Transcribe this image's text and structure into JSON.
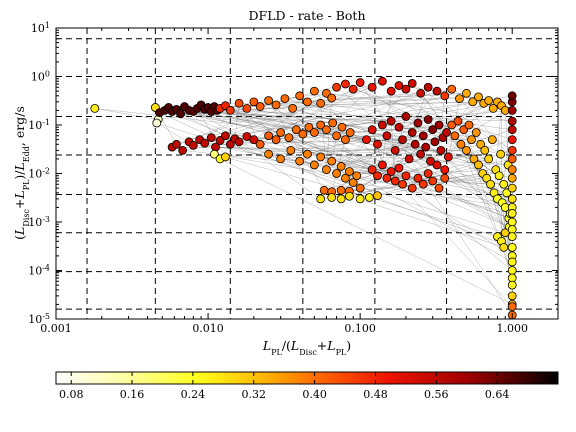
{
  "chart_data": {
    "type": "scatter",
    "title": "DFLD - rate - Both",
    "xlabel": "L_PL/(L_Disc+L_PL)",
    "ylabel": "(L_Disc+L_PL)/L_Edd, erg/s",
    "x_scale": "log",
    "y_scale": "log",
    "xlim": [
      0.001,
      2.0
    ],
    "ylim": [
      1e-05,
      10
    ],
    "grid": false,
    "x_ticks": [
      {
        "value": 0.001,
        "label": "0.001"
      },
      {
        "value": 0.01,
        "label": "0.010"
      },
      {
        "value": 0.1,
        "label": "0.100"
      },
      {
        "value": 1.0,
        "label": "1.000"
      }
    ],
    "y_ticks": [
      {
        "value": 1e-05,
        "base": "10",
        "exp": "-5"
      },
      {
        "value": 0.0001,
        "base": "10",
        "exp": "-4"
      },
      {
        "value": 0.001,
        "base": "10",
        "exp": "-3"
      },
      {
        "value": 0.01,
        "base": "10",
        "exp": "-2"
      },
      {
        "value": 0.1,
        "base": "10",
        "exp": "-1"
      },
      {
        "value": 1.0,
        "base": "10",
        "exp": "0"
      },
      {
        "value": 10,
        "base": "10",
        "exp": "1"
      }
    ],
    "dashed_vlines": [
      0.0016,
      0.0045,
      0.014,
      0.042,
      0.125,
      0.37
    ],
    "dashed_hlines": [
      6.0,
      1.0,
      0.15,
      0.024,
      0.0037,
      0.0006,
      9.5e-05,
      1.6e-05
    ],
    "colorbar": {
      "orientation": "horizontal",
      "colormap": "hot_r",
      "range": [
        0.06,
        0.72
      ],
      "tick_labels": [
        "0.08",
        "0.16",
        "0.24",
        "0.32",
        "0.40",
        "0.48",
        "0.56",
        "0.64"
      ],
      "tick_values": [
        0.08,
        0.16,
        0.24,
        0.32,
        0.4,
        0.48,
        0.56,
        0.64
      ]
    },
    "series": [
      {
        "points": [
          [
            0.0018,
            0.22,
            0.26
          ],
          [
            0.0045,
            0.23,
            0.28
          ],
          [
            0.0047,
            0.13,
            0.12
          ],
          [
            0.0046,
            0.11,
            0.1
          ],
          [
            0.0048,
            0.18,
            0.66
          ],
          [
            0.0052,
            0.2,
            0.66
          ],
          [
            0.0055,
            0.23,
            0.66
          ],
          [
            0.0058,
            0.19,
            0.66
          ],
          [
            0.0062,
            0.21,
            0.66
          ],
          [
            0.0066,
            0.17,
            0.66
          ],
          [
            0.007,
            0.24,
            0.66
          ],
          [
            0.0075,
            0.2,
            0.66
          ],
          [
            0.008,
            0.19,
            0.66
          ],
          [
            0.0085,
            0.22,
            0.66
          ],
          [
            0.009,
            0.26,
            0.66
          ],
          [
            0.0095,
            0.21,
            0.66
          ],
          [
            0.01,
            0.23,
            0.66
          ],
          [
            0.0105,
            0.19,
            0.66
          ],
          [
            0.011,
            0.24,
            0.66
          ],
          [
            0.0115,
            0.2,
            0.66
          ],
          [
            0.012,
            0.22,
            0.48
          ],
          [
            0.013,
            0.25,
            0.48
          ],
          [
            0.014,
            0.2,
            0.46
          ],
          [
            0.016,
            0.28,
            0.44
          ],
          [
            0.018,
            0.22,
            0.44
          ],
          [
            0.02,
            0.3,
            0.42
          ],
          [
            0.022,
            0.24,
            0.42
          ],
          [
            0.025,
            0.32,
            0.4
          ],
          [
            0.028,
            0.26,
            0.4
          ],
          [
            0.032,
            0.35,
            0.4
          ],
          [
            0.036,
            0.22,
            0.4
          ],
          [
            0.04,
            0.4,
            0.4
          ],
          [
            0.045,
            0.3,
            0.4
          ],
          [
            0.05,
            0.5,
            0.4
          ],
          [
            0.055,
            0.28,
            0.4
          ],
          [
            0.06,
            0.45,
            0.4
          ],
          [
            0.065,
            0.36,
            0.4
          ],
          [
            0.07,
            0.6,
            0.46
          ],
          [
            0.08,
            0.7,
            0.48
          ],
          [
            0.09,
            0.55,
            0.48
          ],
          [
            0.1,
            0.75,
            0.5
          ],
          [
            0.12,
            0.6,
            0.5
          ],
          [
            0.14,
            0.8,
            0.52
          ],
          [
            0.16,
            0.5,
            0.52
          ],
          [
            0.18,
            0.65,
            0.52
          ],
          [
            0.2,
            0.55,
            0.54
          ],
          [
            0.22,
            0.72,
            0.54
          ],
          [
            0.25,
            0.45,
            0.54
          ],
          [
            0.28,
            0.6,
            0.56
          ],
          [
            0.32,
            0.5,
            0.56
          ],
          [
            0.36,
            0.4,
            0.46
          ],
          [
            0.4,
            0.55,
            0.4
          ],
          [
            0.45,
            0.35,
            0.36
          ],
          [
            0.5,
            0.45,
            0.34
          ],
          [
            0.55,
            0.3,
            0.34
          ],
          [
            0.6,
            0.38,
            0.34
          ],
          [
            0.65,
            0.28,
            0.34
          ],
          [
            0.7,
            0.32,
            0.34
          ],
          [
            0.75,
            0.22,
            0.34
          ],
          [
            0.8,
            0.3,
            0.34
          ],
          [
            0.85,
            0.25,
            0.34
          ],
          [
            0.9,
            0.2,
            0.34
          ],
          [
            0.0058,
            0.035,
            0.56
          ],
          [
            0.0062,
            0.04,
            0.56
          ],
          [
            0.0068,
            0.03,
            0.56
          ],
          [
            0.0075,
            0.045,
            0.56
          ],
          [
            0.008,
            0.038,
            0.56
          ],
          [
            0.0088,
            0.05,
            0.56
          ],
          [
            0.0095,
            0.042,
            0.56
          ],
          [
            0.0105,
            0.055,
            0.56
          ],
          [
            0.0112,
            0.035,
            0.56
          ],
          [
            0.012,
            0.048,
            0.56
          ],
          [
            0.013,
            0.06,
            0.56
          ],
          [
            0.014,
            0.04,
            0.56
          ],
          [
            0.015,
            0.052,
            0.56
          ],
          [
            0.016,
            0.045,
            0.56
          ],
          [
            0.018,
            0.058,
            0.54
          ],
          [
            0.02,
            0.05,
            0.54
          ],
          [
            0.011,
            0.025,
            0.18
          ],
          [
            0.012,
            0.02,
            0.24
          ],
          [
            0.013,
            0.022,
            0.3
          ],
          [
            0.022,
            0.04,
            0.42
          ],
          [
            0.025,
            0.06,
            0.42
          ],
          [
            0.028,
            0.05,
            0.42
          ],
          [
            0.03,
            0.07,
            0.4
          ],
          [
            0.034,
            0.055,
            0.4
          ],
          [
            0.038,
            0.08,
            0.4
          ],
          [
            0.042,
            0.065,
            0.4
          ],
          [
            0.046,
            0.09,
            0.4
          ],
          [
            0.05,
            0.07,
            0.4
          ],
          [
            0.055,
            0.1,
            0.4
          ],
          [
            0.06,
            0.08,
            0.4
          ],
          [
            0.066,
            0.11,
            0.4
          ],
          [
            0.07,
            0.06,
            0.4
          ],
          [
            0.076,
            0.09,
            0.4
          ],
          [
            0.08,
            0.05,
            0.4
          ],
          [
            0.086,
            0.07,
            0.4
          ],
          [
            0.025,
            0.025,
            0.38
          ],
          [
            0.03,
            0.02,
            0.38
          ],
          [
            0.035,
            0.03,
            0.38
          ],
          [
            0.04,
            0.018,
            0.38
          ],
          [
            0.045,
            0.025,
            0.38
          ],
          [
            0.05,
            0.015,
            0.38
          ],
          [
            0.055,
            0.022,
            0.38
          ],
          [
            0.06,
            0.012,
            0.38
          ],
          [
            0.065,
            0.018,
            0.38
          ],
          [
            0.07,
            0.01,
            0.38
          ],
          [
            0.075,
            0.014,
            0.38
          ],
          [
            0.08,
            0.008,
            0.38
          ],
          [
            0.085,
            0.011,
            0.38
          ],
          [
            0.09,
            0.0065,
            0.38
          ],
          [
            0.095,
            0.009,
            0.38
          ],
          [
            0.1,
            0.005,
            0.4
          ],
          [
            0.058,
            0.0045,
            0.4
          ],
          [
            0.065,
            0.0042,
            0.4
          ],
          [
            0.075,
            0.0045,
            0.4
          ],
          [
            0.085,
            0.0043,
            0.4
          ],
          [
            0.055,
            0.003,
            0.28
          ],
          [
            0.065,
            0.0032,
            0.28
          ],
          [
            0.075,
            0.003,
            0.28
          ],
          [
            0.085,
            0.0034,
            0.28
          ],
          [
            0.1,
            0.003,
            0.26
          ],
          [
            0.115,
            0.0032,
            0.26
          ],
          [
            0.13,
            0.0035,
            0.32
          ],
          [
            0.11,
            0.05,
            0.5
          ],
          [
            0.12,
            0.08,
            0.52
          ],
          [
            0.13,
            0.04,
            0.52
          ],
          [
            0.14,
            0.1,
            0.54
          ],
          [
            0.15,
            0.06,
            0.54
          ],
          [
            0.16,
            0.12,
            0.56
          ],
          [
            0.17,
            0.03,
            0.54
          ],
          [
            0.18,
            0.09,
            0.56
          ],
          [
            0.19,
            0.05,
            0.56
          ],
          [
            0.2,
            0.15,
            0.58
          ],
          [
            0.21,
            0.02,
            0.54
          ],
          [
            0.22,
            0.07,
            0.58
          ],
          [
            0.23,
            0.04,
            0.58
          ],
          [
            0.24,
            0.11,
            0.6
          ],
          [
            0.25,
            0.025,
            0.56
          ],
          [
            0.26,
            0.06,
            0.6
          ],
          [
            0.27,
            0.035,
            0.58
          ],
          [
            0.28,
            0.13,
            0.62
          ],
          [
            0.29,
            0.018,
            0.54
          ],
          [
            0.3,
            0.08,
            0.62
          ],
          [
            0.31,
            0.045,
            0.6
          ],
          [
            0.32,
            0.015,
            0.52
          ],
          [
            0.33,
            0.1,
            0.6
          ],
          [
            0.34,
            0.03,
            0.56
          ],
          [
            0.35,
            0.055,
            0.58
          ],
          [
            0.36,
            0.012,
            0.5
          ],
          [
            0.37,
            0.07,
            0.56
          ],
          [
            0.38,
            0.022,
            0.52
          ],
          [
            0.12,
            0.012,
            0.48
          ],
          [
            0.13,
            0.009,
            0.48
          ],
          [
            0.14,
            0.015,
            0.5
          ],
          [
            0.15,
            0.008,
            0.48
          ],
          [
            0.16,
            0.011,
            0.5
          ],
          [
            0.17,
            0.007,
            0.48
          ],
          [
            0.18,
            0.013,
            0.5
          ],
          [
            0.19,
            0.006,
            0.46
          ],
          [
            0.2,
            0.009,
            0.48
          ],
          [
            0.22,
            0.005,
            0.46
          ],
          [
            0.24,
            0.008,
            0.48
          ],
          [
            0.26,
            0.006,
            0.46
          ],
          [
            0.28,
            0.01,
            0.48
          ],
          [
            0.3,
            0.007,
            0.46
          ],
          [
            0.33,
            0.005,
            0.44
          ],
          [
            0.36,
            0.008,
            0.44
          ],
          [
            0.4,
            0.1,
            0.42
          ],
          [
            0.42,
            0.06,
            0.4
          ],
          [
            0.44,
            0.12,
            0.44
          ],
          [
            0.46,
            0.04,
            0.38
          ],
          [
            0.48,
            0.08,
            0.42
          ],
          [
            0.5,
            0.03,
            0.36
          ],
          [
            0.52,
            0.1,
            0.4
          ],
          [
            0.54,
            0.05,
            0.36
          ],
          [
            0.56,
            0.02,
            0.34
          ],
          [
            0.58,
            0.07,
            0.36
          ],
          [
            0.6,
            0.015,
            0.32
          ],
          [
            0.62,
            0.04,
            0.34
          ],
          [
            0.64,
            0.01,
            0.3
          ],
          [
            0.66,
            0.03,
            0.32
          ],
          [
            0.68,
            0.008,
            0.28
          ],
          [
            0.7,
            0.02,
            0.3
          ],
          [
            0.72,
            0.006,
            0.28
          ],
          [
            0.74,
            0.05,
            0.34
          ],
          [
            0.76,
            0.004,
            0.26
          ],
          [
            0.78,
            0.012,
            0.28
          ],
          [
            0.8,
            0.003,
            0.24
          ],
          [
            0.82,
            0.009,
            0.26
          ],
          [
            0.84,
            0.025,
            0.3
          ],
          [
            0.86,
            0.0025,
            0.24
          ],
          [
            0.88,
            0.006,
            0.26
          ],
          [
            0.9,
            0.002,
            0.24
          ],
          [
            0.92,
            0.004,
            0.24
          ],
          [
            0.94,
            0.015,
            0.28
          ],
          [
            0.8,
            0.0005,
            0.26
          ],
          [
            0.85,
            0.0004,
            0.26
          ],
          [
            0.9,
            0.0006,
            0.3
          ],
          [
            0.88,
            0.0003,
            0.28
          ],
          [
            0.95,
            0.0012,
            0.24
          ],
          [
            0.96,
            0.0008,
            0.24
          ],
          [
            0.97,
            0.0015,
            0.24
          ],
          [
            1.0,
            0.3,
            0.62
          ],
          [
            1.0,
            0.4,
            0.64
          ],
          [
            1.0,
            0.2,
            0.6
          ],
          [
            1.0,
            0.12,
            0.58
          ],
          [
            1.0,
            0.08,
            0.56
          ],
          [
            1.0,
            0.05,
            0.5
          ],
          [
            1.0,
            0.03,
            0.46
          ],
          [
            1.0,
            0.02,
            0.42
          ],
          [
            1.0,
            0.012,
            0.38
          ],
          [
            1.0,
            0.008,
            0.34
          ],
          [
            1.0,
            0.005,
            0.3
          ],
          [
            1.0,
            0.003,
            0.28
          ],
          [
            1.0,
            0.002,
            0.26
          ],
          [
            1.0,
            0.0015,
            0.26
          ],
          [
            1.0,
            0.001,
            0.25
          ],
          [
            1.0,
            0.0007,
            0.25
          ],
          [
            1.0,
            0.0005,
            0.25
          ],
          [
            1.0,
            0.0003,
            0.25
          ],
          [
            1.0,
            0.0002,
            0.25
          ],
          [
            1.0,
            0.00015,
            0.25
          ],
          [
            1.0,
            0.0001,
            0.25
          ],
          [
            1.0,
            7e-05,
            0.25
          ],
          [
            1.0,
            5e-05,
            0.25
          ],
          [
            1.0,
            3e-05,
            0.3
          ],
          [
            1.0,
            2e-05,
            0.34
          ],
          [
            1.0,
            1.8e-05,
            0.4
          ],
          [
            1.0,
            1.2e-05,
            0.4
          ]
        ]
      }
    ]
  }
}
